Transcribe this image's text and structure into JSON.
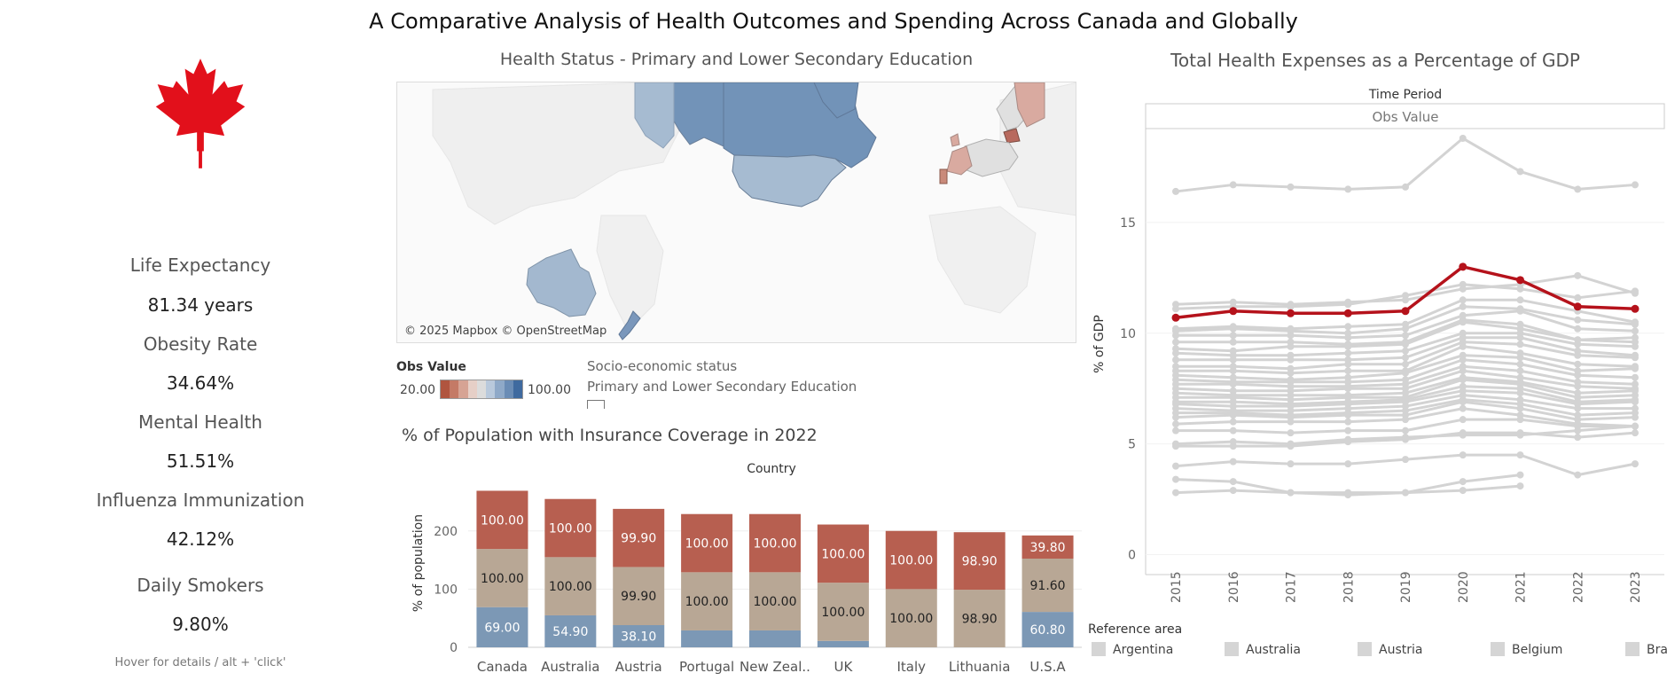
{
  "dashboard": {
    "title": "A Comparative Analysis of Health Outcomes and Spending Across Canada and Globally",
    "hover_hint": "Hover for details / alt + 'click'"
  },
  "kpis": [
    {
      "label": "Life Expectancy",
      "value": "81.34 years"
    },
    {
      "label": "Obesity Rate",
      "value": "34.64%"
    },
    {
      "label": "Mental Health",
      "value": "51.51%"
    },
    {
      "label": "Influenza Immunization",
      "value": "42.12%"
    },
    {
      "label": "Daily Smokers",
      "value": "9.80%"
    }
  ],
  "map": {
    "title": "Health Status - Primary and Lower Secondary Education",
    "credit": "© 2025 Mapbox © OpenStreetMap",
    "legend": {
      "title": "Obs Value",
      "min": "20.00",
      "max": "100.00",
      "colors": [
        "#b0553f",
        "#c47a66",
        "#d6a394",
        "#e6cfc7",
        "#dcdcdc",
        "#b9c9dc",
        "#8fa9c8",
        "#6a8cb5",
        "#3f6a9f"
      ]
    },
    "filter": {
      "title": "Socio-economic status",
      "value": "Primary and Lower Secondary Education"
    },
    "region_colors": {
      "canada": "#7293b8",
      "alaska": "#7293b8",
      "greenland": "#7293b8",
      "usa": "#a6bbd1",
      "yukon_west": "#a6bbd1",
      "australia": "#a3b8cf",
      "new_zealand": "#7a97bb",
      "portugal": "#c98a7a",
      "europe_pink": "#d9aaa0",
      "europe_dark": "#b86a5e",
      "europe_gray": "#e0e0e0"
    }
  },
  "chart_data": [
    {
      "type": "bar",
      "title": "% of Population with Insurance Coverage in 2022",
      "column_header": "Country",
      "ylabel": "% of population",
      "yticks": [
        0,
        100,
        200
      ],
      "ylim": [
        0,
        320
      ],
      "categories": [
        "Canada",
        "Australia",
        "Austria",
        "Portugal",
        "New Zeal..",
        "UK",
        "Italy",
        "Lithuania",
        "U.S.A"
      ],
      "series": [
        {
          "color": "#7c98b5",
          "values": [
            69.0,
            54.9,
            38.1,
            29.0,
            29.0,
            11.0,
            0,
            0,
            60.8
          ],
          "labels": [
            "69.00",
            "54.90",
            "38.10",
            "",
            "",
            "",
            "",
            "",
            "60.80"
          ]
        },
        {
          "color": "#b8a795",
          "values": [
            100.0,
            100.0,
            99.9,
            100.0,
            100.0,
            100.0,
            100.0,
            98.9,
            91.6
          ],
          "labels": [
            "100.00",
            "100.00",
            "99.90",
            "100.00",
            "100.00",
            "100.00",
            "100.00",
            "98.90",
            "91.60"
          ]
        },
        {
          "color": "#b75f50",
          "values": [
            100.0,
            100.0,
            99.9,
            100.0,
            100.0,
            100.0,
            100.0,
            98.9,
            39.8
          ],
          "labels": [
            "100.00",
            "100.00",
            "99.90",
            "100.00",
            "100.00",
            "100.00",
            "100.00",
            "98.90",
            "39.80"
          ]
        }
      ]
    },
    {
      "type": "line",
      "title": "Total Health Expenses as a Percentage of GDP",
      "header_top": "Time Period",
      "header_sub": "Obs Value",
      "ylabel": "% of GDP",
      "x": [
        "2015",
        "2016",
        "2017",
        "2018",
        "2019",
        "2020",
        "2021",
        "2022",
        "2023"
      ],
      "yticks": [
        0,
        5,
        10,
        15
      ],
      "ylim": [
        -0.5,
        19.2
      ],
      "highlight": {
        "color": "#b5121b",
        "values": [
          10.7,
          11.0,
          10.9,
          10.9,
          11.0,
          13.0,
          12.4,
          11.2,
          11.1
        ]
      },
      "other_color": "#d3d3d3",
      "others": [
        [
          16.4,
          16.7,
          16.6,
          16.5,
          16.6,
          18.8,
          17.3,
          16.5,
          16.7
        ],
        [
          11.3,
          11.4,
          11.3,
          11.4,
          11.5,
          12.0,
          12.2,
          12.6,
          11.8
        ],
        [
          11.1,
          11.2,
          11.2,
          11.3,
          11.7,
          12.2,
          12.0,
          11.6,
          11.9
        ],
        [
          10.2,
          10.3,
          10.2,
          10.3,
          10.4,
          11.5,
          11.5,
          11.0,
          10.5
        ],
        [
          10.1,
          10.2,
          10.1,
          10.0,
          10.2,
          11.2,
          11.1,
          10.6,
          10.4
        ],
        [
          9.9,
          9.9,
          9.9,
          9.8,
          9.9,
          10.8,
          11.0,
          10.2,
          10.1
        ],
        [
          9.6,
          9.6,
          9.6,
          9.5,
          9.6,
          10.6,
          10.4,
          9.7,
          9.8
        ],
        [
          9.3,
          9.2,
          9.4,
          9.4,
          9.5,
          10.5,
          10.2,
          9.7,
          9.6
        ],
        [
          9.1,
          9.0,
          9.0,
          9.1,
          9.2,
          10.0,
          10.0,
          9.5,
          9.4
        ],
        [
          8.8,
          8.8,
          8.8,
          8.8,
          8.9,
          9.8,
          9.8,
          9.2,
          9.0
        ],
        [
          8.5,
          8.5,
          8.4,
          8.6,
          8.6,
          9.6,
          9.5,
          9.0,
          8.9
        ],
        [
          8.3,
          8.3,
          8.2,
          8.3,
          8.3,
          9.4,
          9.1,
          8.6,
          8.5
        ],
        [
          8.1,
          8.0,
          7.9,
          8.0,
          8.2,
          9.0,
          8.9,
          8.3,
          8.4
        ],
        [
          7.9,
          7.8,
          7.8,
          7.8,
          7.9,
          8.8,
          8.6,
          8.1,
          8.0
        ],
        [
          7.7,
          7.7,
          7.6,
          7.6,
          7.7,
          8.5,
          8.3,
          7.8,
          7.7
        ],
        [
          7.5,
          7.4,
          7.4,
          7.5,
          7.5,
          8.3,
          8.0,
          7.6,
          7.5
        ],
        [
          7.3,
          7.2,
          7.2,
          7.2,
          7.3,
          8.0,
          7.8,
          7.3,
          7.4
        ],
        [
          7.1,
          7.1,
          7.0,
          7.1,
          7.1,
          7.9,
          7.7,
          7.1,
          7.2
        ],
        [
          6.9,
          6.9,
          6.8,
          6.9,
          7.0,
          7.6,
          7.5,
          6.9,
          7.0
        ],
        [
          6.8,
          6.7,
          6.7,
          6.8,
          6.9,
          7.4,
          7.3,
          6.8,
          6.9
        ],
        [
          6.6,
          6.5,
          6.5,
          6.6,
          6.7,
          7.2,
          7.0,
          6.6,
          6.6
        ],
        [
          6.4,
          6.4,
          6.3,
          6.4,
          6.5,
          7.0,
          6.8,
          6.3,
          6.4
        ],
        [
          6.2,
          6.3,
          6.2,
          6.3,
          6.3,
          6.9,
          6.6,
          6.1,
          6.2
        ],
        [
          5.9,
          6.0,
          6.0,
          6.0,
          6.1,
          6.6,
          6.3,
          5.9,
          5.8
        ],
        [
          5.6,
          5.6,
          5.5,
          5.6,
          5.6,
          6.1,
          6.1,
          5.8,
          5.8
        ],
        [
          5.0,
          5.1,
          5.0,
          5.2,
          5.3,
          5.4,
          5.4,
          5.6,
          5.8
        ],
        [
          4.9,
          4.9,
          4.9,
          5.1,
          5.2,
          5.5,
          5.5,
          5.3,
          5.5
        ],
        [
          4.0,
          4.2,
          4.1,
          4.1,
          4.3,
          4.5,
          4.5,
          3.6,
          4.1
        ],
        [
          3.4,
          3.3,
          2.8,
          2.7,
          2.8,
          3.3,
          3.6,
          null,
          null
        ],
        [
          2.8,
          2.9,
          2.8,
          2.8,
          2.8,
          2.9,
          3.1,
          null,
          null
        ]
      ],
      "legend_title": "Reference area",
      "legend_items": [
        "Argentina",
        "Australia",
        "Austria",
        "Belgium",
        "Bra"
      ]
    }
  ]
}
